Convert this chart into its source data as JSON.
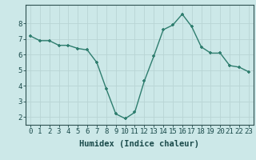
{
  "x": [
    0,
    1,
    2,
    3,
    4,
    5,
    6,
    7,
    8,
    9,
    10,
    11,
    12,
    13,
    14,
    15,
    16,
    17,
    18,
    19,
    20,
    21,
    22,
    23
  ],
  "y": [
    7.2,
    6.9,
    6.9,
    6.6,
    6.6,
    6.4,
    6.3,
    5.5,
    3.8,
    2.2,
    1.9,
    2.3,
    4.3,
    5.9,
    7.6,
    7.9,
    8.6,
    7.8,
    6.5,
    6.1,
    6.1,
    5.3,
    5.2,
    4.9
  ],
  "line_color": "#2e7d6e",
  "marker": "+",
  "bg_color": "#cce8e8",
  "grid_color": "#b8d4d4",
  "xlabel": "Humidex (Indice chaleur)",
  "xlim": [
    -0.5,
    23.5
  ],
  "ylim": [
    1.5,
    9.2
  ],
  "yticks": [
    2,
    3,
    4,
    5,
    6,
    7,
    8
  ],
  "xticks": [
    0,
    1,
    2,
    3,
    4,
    5,
    6,
    7,
    8,
    9,
    10,
    11,
    12,
    13,
    14,
    15,
    16,
    17,
    18,
    19,
    20,
    21,
    22,
    23
  ],
  "xtick_labels": [
    "0",
    "1",
    "2",
    "3",
    "4",
    "5",
    "6",
    "7",
    "8",
    "9",
    "10",
    "11",
    "12",
    "13",
    "14",
    "15",
    "16",
    "17",
    "18",
    "19",
    "20",
    "21",
    "22",
    "23"
  ],
  "font_color": "#1a4a4a",
  "axis_color": "#2e5050",
  "linewidth": 1.0,
  "markersize": 3.5,
  "tick_fontsize": 6.5,
  "xlabel_fontsize": 7.5
}
